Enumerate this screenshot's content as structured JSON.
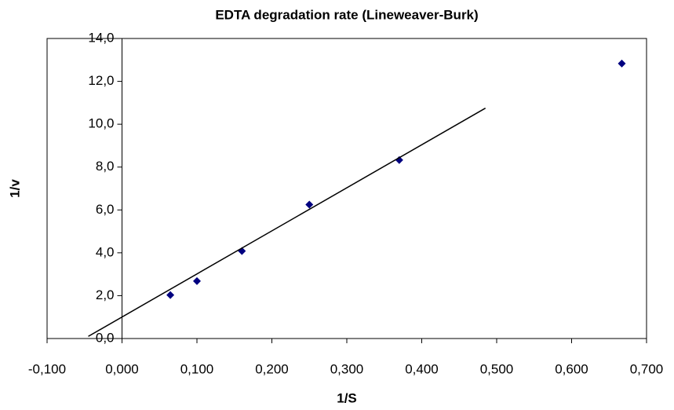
{
  "chart_data": {
    "type": "scatter",
    "title": "EDTA degradation rate (Lineweaver-Burk)",
    "xlabel": "1/S",
    "ylabel": "1/v",
    "xlim": [
      -0.1,
      0.7
    ],
    "ylim": [
      0,
      14
    ],
    "xticks": [
      {
        "value": -0.1,
        "label": "-0,100"
      },
      {
        "value": 0,
        "label": "0,000"
      },
      {
        "value": 0.1,
        "label": "0,100"
      },
      {
        "value": 0.2,
        "label": "0,200"
      },
      {
        "value": 0.3,
        "label": "0,300"
      },
      {
        "value": 0.4,
        "label": "0,400"
      },
      {
        "value": 0.5,
        "label": "0,500"
      },
      {
        "value": 0.6,
        "label": "0,600"
      },
      {
        "value": 0.7,
        "label": "0,700"
      }
    ],
    "yticks": [
      {
        "value": 0,
        "label": "0,0"
      },
      {
        "value": 2,
        "label": "2,0"
      },
      {
        "value": 4,
        "label": "4,0"
      },
      {
        "value": 6,
        "label": "6,0"
      },
      {
        "value": 8,
        "label": "8,0"
      },
      {
        "value": 10,
        "label": "10,0"
      },
      {
        "value": 12,
        "label": "12,0"
      },
      {
        "value": 14,
        "label": "14,0"
      }
    ],
    "series": [
      {
        "type": "scatter",
        "marker": "diamond",
        "color": "#000080",
        "x": [
          0.0645,
          0.1,
          0.16,
          0.25,
          0.37,
          0.667
        ],
        "values": [
          2.03,
          2.68,
          4.08,
          6.25,
          8.33,
          12.83
        ]
      },
      {
        "type": "line",
        "color": "#000000",
        "x": [
          -0.045,
          0.485
        ],
        "values": [
          0.1,
          10.75
        ]
      }
    ]
  }
}
